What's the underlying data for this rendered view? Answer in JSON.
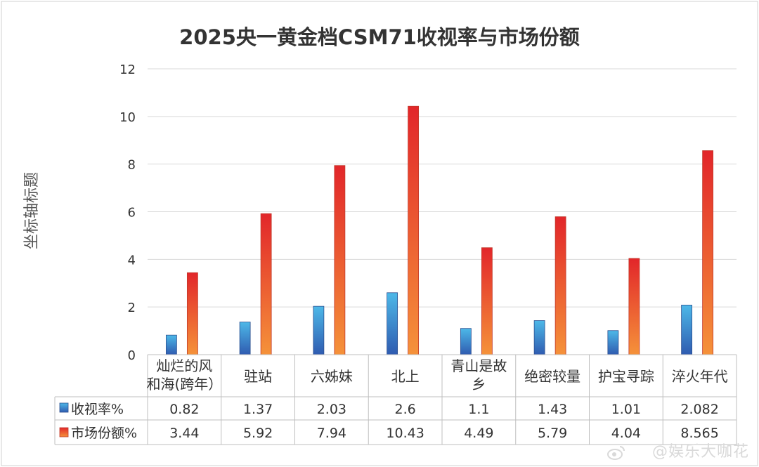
{
  "chart_data": {
    "type": "bar",
    "title": "2025央一黄金档CSM71收视率与市场份额",
    "ylabel": "坐标轴标题",
    "ylim": [
      0,
      12
    ],
    "yticks": [
      "0",
      "2",
      "4",
      "6",
      "8",
      "10",
      "12"
    ],
    "grid": true,
    "categories": [
      [
        "灿烂的风",
        "和海(跨年）"
      ],
      [
        "驻站"
      ],
      [
        "六姊妹"
      ],
      [
        "北上"
      ],
      [
        "青山是故",
        "乡"
      ],
      [
        "绝密较量"
      ],
      [
        "护宝寻踪"
      ],
      [
        "淬火年代"
      ]
    ],
    "series": [
      {
        "name": "收视率%",
        "values": [
          0.82,
          1.37,
          2.03,
          2.6,
          1.1,
          1.43,
          1.01,
          2.082
        ],
        "labels": [
          "0.82",
          "1.37",
          "2.03",
          "2.6",
          "1.1",
          "1.43",
          "1.01",
          "2.082"
        ],
        "color_top": "#4db8e8",
        "color_bottom": "#2f5bb0"
      },
      {
        "name": "市场份额%",
        "values": [
          3.44,
          5.92,
          7.94,
          10.43,
          4.49,
          5.79,
          4.04,
          8.565
        ],
        "labels": [
          "3.44",
          "5.92",
          "7.94",
          "10.43",
          "4.49",
          "5.79",
          "4.04",
          "8.565"
        ],
        "color_top": "#e2262a",
        "color_bottom": "#f5923a"
      }
    ],
    "data_table": true
  },
  "watermark": "@娱乐大咖花"
}
